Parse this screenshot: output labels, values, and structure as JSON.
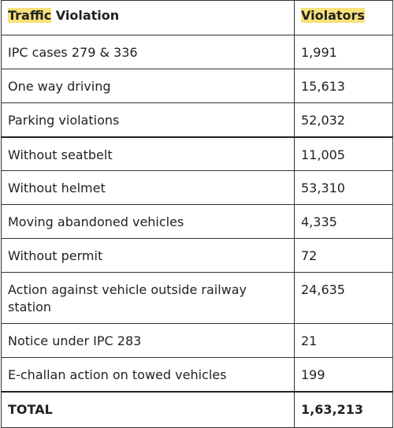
{
  "table": {
    "header": [
      [
        "Traffic",
        "Violation"
      ],
      "Violators"
    ],
    "rows": [
      [
        "IPC cases 279 & 336",
        "1,991"
      ],
      [
        "One way driving",
        "15,613"
      ],
      [
        "Parking violations",
        "52,032"
      ],
      [
        "Without seatbelt",
        "11,005"
      ],
      [
        "Without helmet",
        "53,310"
      ],
      [
        "Moving abandoned vehicles",
        "4,335"
      ],
      [
        "Without permit",
        "72"
      ],
      [
        "Action against vehicle outside railway station",
        "24,635"
      ],
      [
        "Notice under IPC 283",
        "21"
      ],
      [
        "E-challan action on towed vehicles",
        "199"
      ]
    ],
    "total": [
      "TOTAL",
      "1,63,213"
    ]
  }
}
